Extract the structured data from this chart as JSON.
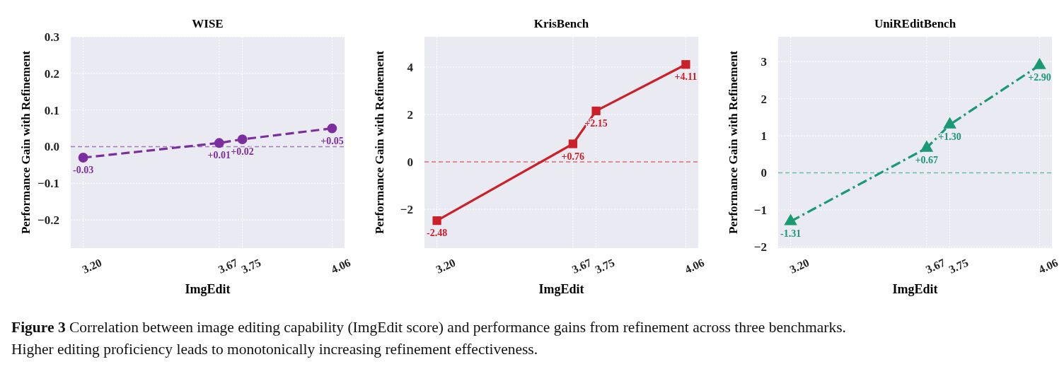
{
  "chart_data": [
    {
      "type": "line",
      "title": "WISE",
      "xlabel": "ImgEdit",
      "ylabel": "Performance Gain with Refinement",
      "x": [
        3.2,
        3.67,
        3.75,
        4.06
      ],
      "xlim": [
        3.157,
        4.103
      ],
      "xticks": [
        {
          "value": 3.2,
          "label": "3.20"
        },
        {
          "value": 3.67,
          "label": "3.67"
        },
        {
          "value": 3.75,
          "label": "3.75"
        },
        {
          "value": 4.06,
          "label": "4.06"
        }
      ],
      "ylim": [
        -0.277,
        0.3
      ],
      "yticks": [
        {
          "value": -0.2,
          "label": "−0.2"
        },
        {
          "value": -0.1,
          "label": "−0.1"
        },
        {
          "value": 0,
          "label": "0.0"
        },
        {
          "value": 0.1,
          "label": "0.1"
        },
        {
          "value": 0.2,
          "label": "0.2"
        },
        {
          "value": 0.3,
          "label": "0.3"
        }
      ],
      "grid": true,
      "marker": "circle",
      "line_style": "dashed",
      "series": [
        {
          "color": "#7b2f9e",
          "values": [
            -0.03,
            0.01,
            0.02,
            0.05
          ],
          "value_labels": [
            "-0.03",
            "+0.01",
            "+0.02",
            "+0.05"
          ]
        }
      ],
      "ref_lines": [
        {
          "axis": "y",
          "value": 0,
          "color": "#a679c0",
          "line_style": "dashed"
        }
      ],
      "annotations": [
        "Figure 3  Correlation between image editing capability (ImgEdit score) and performance gains from refinement across three benchmarks. Higher editing proficiency leads to monotonically increasing refinement effectiveness."
      ]
    },
    {
      "type": "line",
      "title": "KrisBench",
      "xlabel": "ImgEdit",
      "ylabel": "Performance Gain with Refinement",
      "x": [
        3.2,
        3.67,
        3.75,
        4.06
      ],
      "xlim": [
        3.157,
        4.103
      ],
      "xticks": [
        {
          "value": 3.2,
          "label": "3.20"
        },
        {
          "value": 3.67,
          "label": "3.67"
        },
        {
          "value": 3.75,
          "label": "3.75"
        },
        {
          "value": 4.06,
          "label": "4.06"
        }
      ],
      "ylim": [
        -3.64,
        5.28
      ],
      "yticks": [
        {
          "value": -2,
          "label": "−2"
        },
        0,
        2,
        4
      ],
      "grid": true,
      "marker": "square",
      "line_style": "solid",
      "series": [
        {
          "color": "#cc1f27",
          "values": [
            -2.48,
            0.76,
            2.15,
            4.11
          ],
          "value_labels": [
            "-2.48",
            "+0.76",
            "+2.15",
            "+4.11"
          ]
        }
      ],
      "ref_lines": [
        {
          "axis": "y",
          "value": 0,
          "color": "#dc6a6c",
          "line_style": "dashed"
        }
      ]
    },
    {
      "type": "line",
      "title": "UniREditBench",
      "xlabel": "ImgEdit",
      "ylabel": "Performance Gain with Refinement",
      "x": [
        3.2,
        3.67,
        3.75,
        4.06
      ],
      "xlim": [
        3.157,
        4.103
      ],
      "xticks": [
        {
          "value": 3.2,
          "label": "3.20"
        },
        {
          "value": 3.67,
          "label": "3.67"
        },
        {
          "value": 3.75,
          "label": "3.75"
        },
        {
          "value": 4.06,
          "label": "4.06"
        }
      ],
      "ylim": [
        -2.03,
        3.67
      ],
      "yticks": [
        {
          "value": -2,
          "label": "−2"
        },
        {
          "value": -1,
          "label": "−1"
        },
        0,
        1,
        2,
        3
      ],
      "grid": true,
      "marker": "triangle",
      "line_style": "dashdot",
      "series": [
        {
          "color": "#1a9a72",
          "values": [
            -1.31,
            0.67,
            1.3,
            2.9
          ],
          "value_labels": [
            "-1.31",
            "+0.67",
            "+1.30",
            "+2.90"
          ]
        }
      ],
      "ref_lines": [
        {
          "axis": "y",
          "value": 0,
          "color": "#66c1a2",
          "line_style": "dashed"
        }
      ]
    }
  ]
}
